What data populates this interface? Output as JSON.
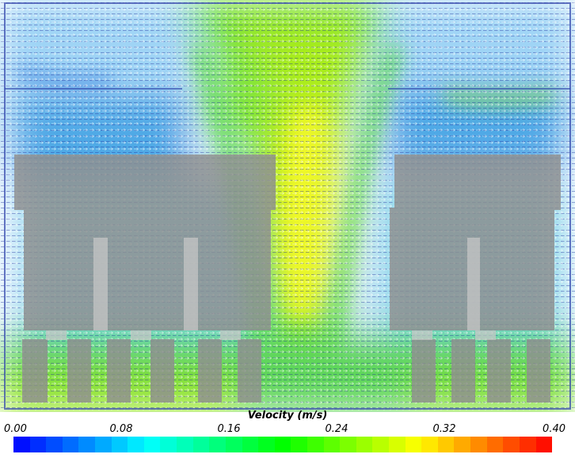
{
  "colorbar": {
    "title": "Velocity (m/s)",
    "ticks": [
      "0.00",
      "0.08",
      "0.16",
      "0.24",
      "0.32",
      "0.40"
    ],
    "min": 0.0,
    "max": 0.4,
    "steps": 33,
    "colors": [
      "#0000ff",
      "#00ffff",
      "#00ff00",
      "#ffff00",
      "#ff0000"
    ]
  },
  "blocks": {
    "fill": "#8f8f8f",
    "opacity": 0.8
  }
}
